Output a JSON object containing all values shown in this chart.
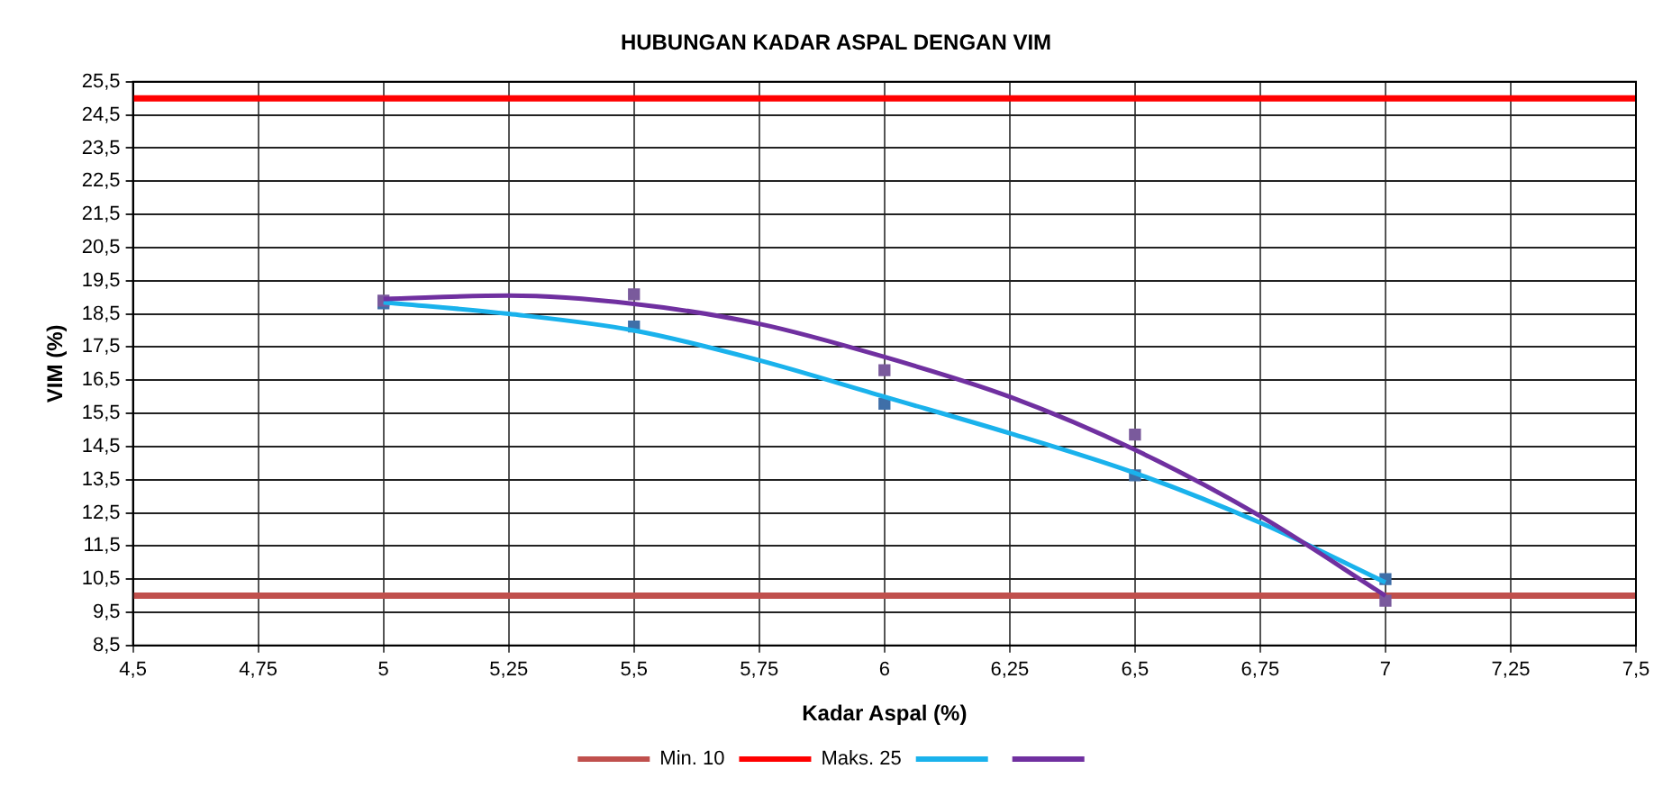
{
  "chart_data": {
    "type": "line",
    "title": "HUBUNGAN KADAR ASPAL DENGAN VIM",
    "xlabel": "Kadar Aspal (%)",
    "ylabel": "VIM (%)",
    "series": [
      {
        "type": "scatter",
        "color": "#3f6fa8",
        "marker": "square",
        "x": [
          5,
          5.5,
          6,
          6.5,
          7
        ],
        "values": [
          18.82,
          18.12,
          15.79,
          13.63,
          10.5
        ]
      },
      {
        "type": "scatter",
        "color": "#7a5a9c",
        "marker": "square",
        "x": [
          5,
          5.5,
          6,
          6.5,
          7
        ],
        "values": [
          18.9,
          19.09,
          16.8,
          14.86,
          9.85
        ]
      },
      {
        "type": "line",
        "color": "#1ab2ec",
        "marker": "none",
        "x": [
          5,
          5.25,
          5.5,
          5.75,
          6,
          6.25,
          6.5,
          6.75,
          7
        ],
        "values": [
          18.85,
          18.5,
          18.0,
          17.1,
          16.0,
          14.9,
          13.7,
          12.2,
          10.4
        ]
      },
      {
        "type": "line",
        "color": "#7030a0",
        "marker": "none",
        "x": [
          5,
          5.25,
          5.5,
          5.75,
          6,
          6.25,
          6.5,
          6.75,
          7
        ],
        "values": [
          18.95,
          19.05,
          18.8,
          18.2,
          17.2,
          16.0,
          14.4,
          12.4,
          10.0
        ]
      }
    ],
    "ref_lines": [
      {
        "axis": "y",
        "value": 10,
        "label": "Min. 10",
        "color": "#c0504d"
      },
      {
        "axis": "y",
        "value": 25,
        "label": "Maks. 25",
        "color": "#ff0000"
      }
    ],
    "xlim": [
      4.5,
      7.5
    ],
    "xticks": [
      {
        "value": 4.5,
        "label": "4,5"
      },
      {
        "value": 4.75,
        "label": "4,75"
      },
      5,
      {
        "value": 5.25,
        "label": "5,25"
      },
      {
        "value": 5.5,
        "label": "5,5"
      },
      {
        "value": 5.75,
        "label": "5,75"
      },
      6,
      {
        "value": 6.25,
        "label": "6,25"
      },
      {
        "value": 6.5,
        "label": "6,5"
      },
      {
        "value": 6.75,
        "label": "6,75"
      },
      7,
      {
        "value": 7.25,
        "label": "7,25"
      },
      {
        "value": 7.5,
        "label": "7,5"
      }
    ],
    "ylim": [
      8.5,
      25.5
    ],
    "yticks": [
      {
        "value": 8.5,
        "label": "8,5"
      },
      {
        "value": 9.5,
        "label": "9,5"
      },
      {
        "value": 10.5,
        "label": "10,5"
      },
      {
        "value": 11.5,
        "label": "11,5"
      },
      {
        "value": 12.5,
        "label": "12,5"
      },
      {
        "value": 13.5,
        "label": "13,5"
      },
      {
        "value": 14.5,
        "label": "14,5"
      },
      {
        "value": 15.5,
        "label": "15,5"
      },
      {
        "value": 16.5,
        "label": "16,5"
      },
      {
        "value": 17.5,
        "label": "17,5"
      },
      {
        "value": 18.5,
        "label": "18,5"
      },
      {
        "value": 19.5,
        "label": "19,5"
      },
      {
        "value": 20.5,
        "label": "20,5"
      },
      {
        "value": 21.5,
        "label": "21,5"
      },
      {
        "value": 22.5,
        "label": "22,5"
      },
      {
        "value": 23.5,
        "label": "23,5"
      },
      {
        "value": 24.5,
        "label": "24,5"
      },
      {
        "value": 25.5,
        "label": "25,5"
      }
    ],
    "grid": true,
    "legend": "bottom"
  }
}
